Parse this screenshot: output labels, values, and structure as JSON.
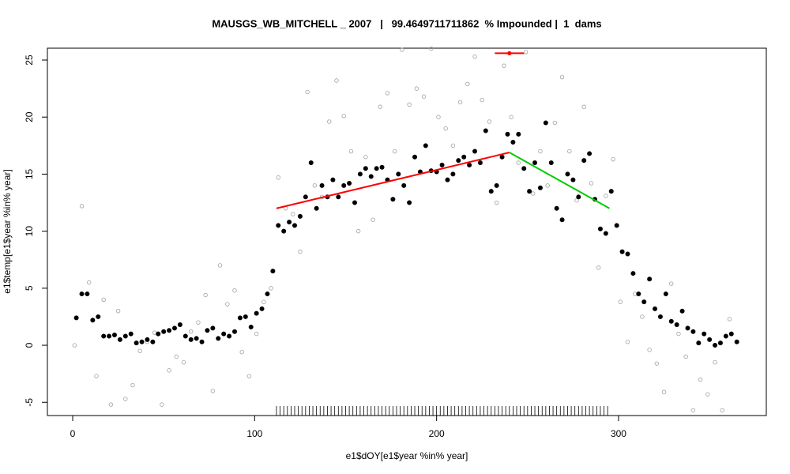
{
  "chart_data": {
    "type": "scatter",
    "title": "MAUSGS_WB_MITCHELL _ 2007   |   99.4649711711862  % Impounded |  1  dams",
    "x_label": "e1$dOY[e1$year %in% year]",
    "y_label": "e1$temp[e1$year %in% year]",
    "xlim": [
      -13.9,
      381.2
    ],
    "ylim": [
      -6.16,
      26.04
    ],
    "xticks": [
      0,
      100,
      200,
      300
    ],
    "yticks": [
      -5,
      0,
      5,
      10,
      15,
      20,
      25
    ],
    "series": [
      {
        "color": "#a0a0a0",
        "marker": "open",
        "x": [
          1,
          5,
          9,
          13,
          17,
          21,
          25,
          29,
          33,
          37,
          41,
          45,
          49,
          53,
          57,
          61,
          65,
          69,
          73,
          77,
          81,
          85,
          89,
          93,
          97,
          101,
          105,
          109,
          113,
          117,
          121,
          125,
          129,
          133,
          137,
          141,
          145,
          149,
          153,
          157,
          161,
          165,
          169,
          173,
          177,
          181,
          185,
          189,
          193,
          197,
          201,
          205,
          209,
          213,
          217,
          221,
          225,
          229,
          233,
          237,
          241,
          245,
          249,
          253,
          257,
          261,
          265,
          269,
          273,
          277,
          281,
          285,
          289,
          293,
          297,
          301,
          305,
          309,
          313,
          317,
          321,
          325,
          329,
          333,
          337,
          341,
          345,
          349,
          353,
          357,
          361
        ],
        "values": [
          0,
          12.2,
          5.5,
          -2.7,
          4,
          -5.2,
          3,
          -4.7,
          -3.5,
          -0.5,
          0.3,
          1.1,
          -5.2,
          -2.2,
          -1,
          -1.5,
          1.2,
          2,
          4.4,
          -4,
          7,
          3.6,
          4.8,
          -0.6,
          -2.7,
          1,
          3.8,
          5,
          14.7,
          12,
          11.5,
          8.2,
          22.2,
          14,
          13,
          19.6,
          23.2,
          20.1,
          17,
          10,
          16.5,
          11,
          20.9,
          22.1,
          17,
          25.9,
          21.1,
          22.5,
          21.8,
          26,
          20,
          19,
          17.5,
          21.3,
          22.9,
          25.3,
          21.5,
          19.6,
          12.5,
          24.5,
          20,
          16,
          25.7,
          13.3,
          17,
          14,
          19.5,
          23.5,
          17,
          12.7,
          20.9,
          14.2,
          6.8,
          13.1,
          16.3,
          3.8,
          0.3,
          4.5,
          2.5,
          -0.4,
          -1.6,
          -4.1,
          5.4,
          1,
          -1,
          -5.7,
          -3,
          -4.3,
          -1.5,
          -5.7,
          2.3
        ]
      },
      {
        "color": "#000000",
        "marker": "filled",
        "x": [
          2,
          5,
          8,
          11,
          14,
          17,
          20,
          23,
          26,
          29,
          32,
          35,
          38,
          41,
          44,
          47,
          50,
          53,
          56,
          59,
          62,
          65,
          68,
          71,
          74,
          77,
          80,
          83,
          86,
          89,
          92,
          95,
          98,
          101,
          104,
          107,
          110,
          113,
          116,
          119,
          122,
          125,
          128,
          131,
          134,
          137,
          140,
          143,
          146,
          149,
          152,
          155,
          158,
          161,
          164,
          167,
          170,
          173,
          176,
          179,
          182,
          185,
          188,
          191,
          194,
          197,
          200,
          203,
          206,
          209,
          212,
          215,
          218,
          221,
          224,
          227,
          230,
          233,
          236,
          239,
          242,
          245,
          248,
          251,
          254,
          257,
          260,
          263,
          266,
          269,
          272,
          275,
          278,
          281,
          284,
          287,
          290,
          293,
          296,
          299,
          302,
          305,
          308,
          311,
          314,
          317,
          320,
          323,
          326,
          329,
          332,
          335,
          338,
          341,
          344,
          347,
          350,
          353,
          356,
          359,
          362,
          365
        ],
        "values": [
          2.4,
          4.5,
          4.5,
          2.2,
          2.5,
          0.8,
          0.8,
          0.9,
          0.5,
          0.8,
          1.0,
          0.2,
          0.3,
          0.5,
          0.3,
          1.0,
          1.2,
          1.3,
          1.5,
          1.8,
          0.8,
          0.5,
          0.6,
          0.3,
          1.3,
          1.5,
          0.6,
          1.0,
          0.8,
          1.2,
          2.4,
          2.5,
          1.6,
          2.8,
          3.2,
          4.5,
          6.5,
          10.5,
          10,
          10.8,
          10.5,
          11.3,
          13,
          16,
          12,
          14,
          13,
          14.5,
          13,
          14,
          14.2,
          12.5,
          15,
          15.5,
          14.8,
          15.5,
          15.6,
          14.5,
          12.8,
          15,
          14,
          12.5,
          16.5,
          15.2,
          17.5,
          15.3,
          15.2,
          15.8,
          14.5,
          15,
          16.2,
          16.5,
          15.8,
          17,
          16,
          18.8,
          13.5,
          14,
          16.5,
          18.5,
          17.8,
          18.5,
          15.5,
          13.5,
          16,
          13.8,
          19.5,
          16,
          12,
          11,
          15,
          14.5,
          13,
          16.2,
          16.8,
          12.8,
          10.2,
          9.8,
          13.5,
          10.5,
          8.2,
          8,
          6.3,
          4.5,
          3.8,
          5.8,
          3.2,
          2.5,
          4.5,
          2.1,
          1.8,
          3,
          1.5,
          1.2,
          0.2,
          1,
          0.5,
          0,
          0.2,
          0.8,
          1,
          0.3
        ]
      }
    ],
    "segments": [
      {
        "color": "#ff0000",
        "x": [
          112,
          240
        ],
        "values": [
          12,
          16.9
        ]
      },
      {
        "color": "#00cc00",
        "x": [
          240,
          295
        ],
        "values": [
          16.9,
          12
        ]
      },
      {
        "color": "#ff0000",
        "x": [
          232,
          248
        ],
        "values": [
          25.6,
          25.6
        ]
      }
    ],
    "points": [
      {
        "color": "#ff0000",
        "x": 240,
        "y": 25.6
      }
    ],
    "rug": [
      112,
      114,
      116,
      118,
      120,
      122,
      124,
      126,
      128,
      130,
      132,
      134,
      136,
      138,
      140,
      142,
      144,
      146,
      148,
      150,
      152,
      154,
      156,
      158,
      160,
      162,
      164,
      166,
      168,
      170,
      172,
      174,
      176,
      178,
      180,
      182,
      184,
      186,
      188,
      190,
      192,
      194,
      196,
      198,
      200,
      202,
      204,
      206,
      208,
      210,
      212,
      214,
      216,
      218,
      220,
      222,
      224,
      226,
      228,
      230,
      232,
      234,
      236,
      238,
      240,
      242,
      244,
      246,
      248,
      250,
      252,
      254,
      256,
      258,
      260,
      262,
      264,
      266,
      268,
      270,
      272,
      274,
      276,
      278,
      280,
      282,
      284,
      286,
      288,
      290,
      292,
      294
    ]
  }
}
